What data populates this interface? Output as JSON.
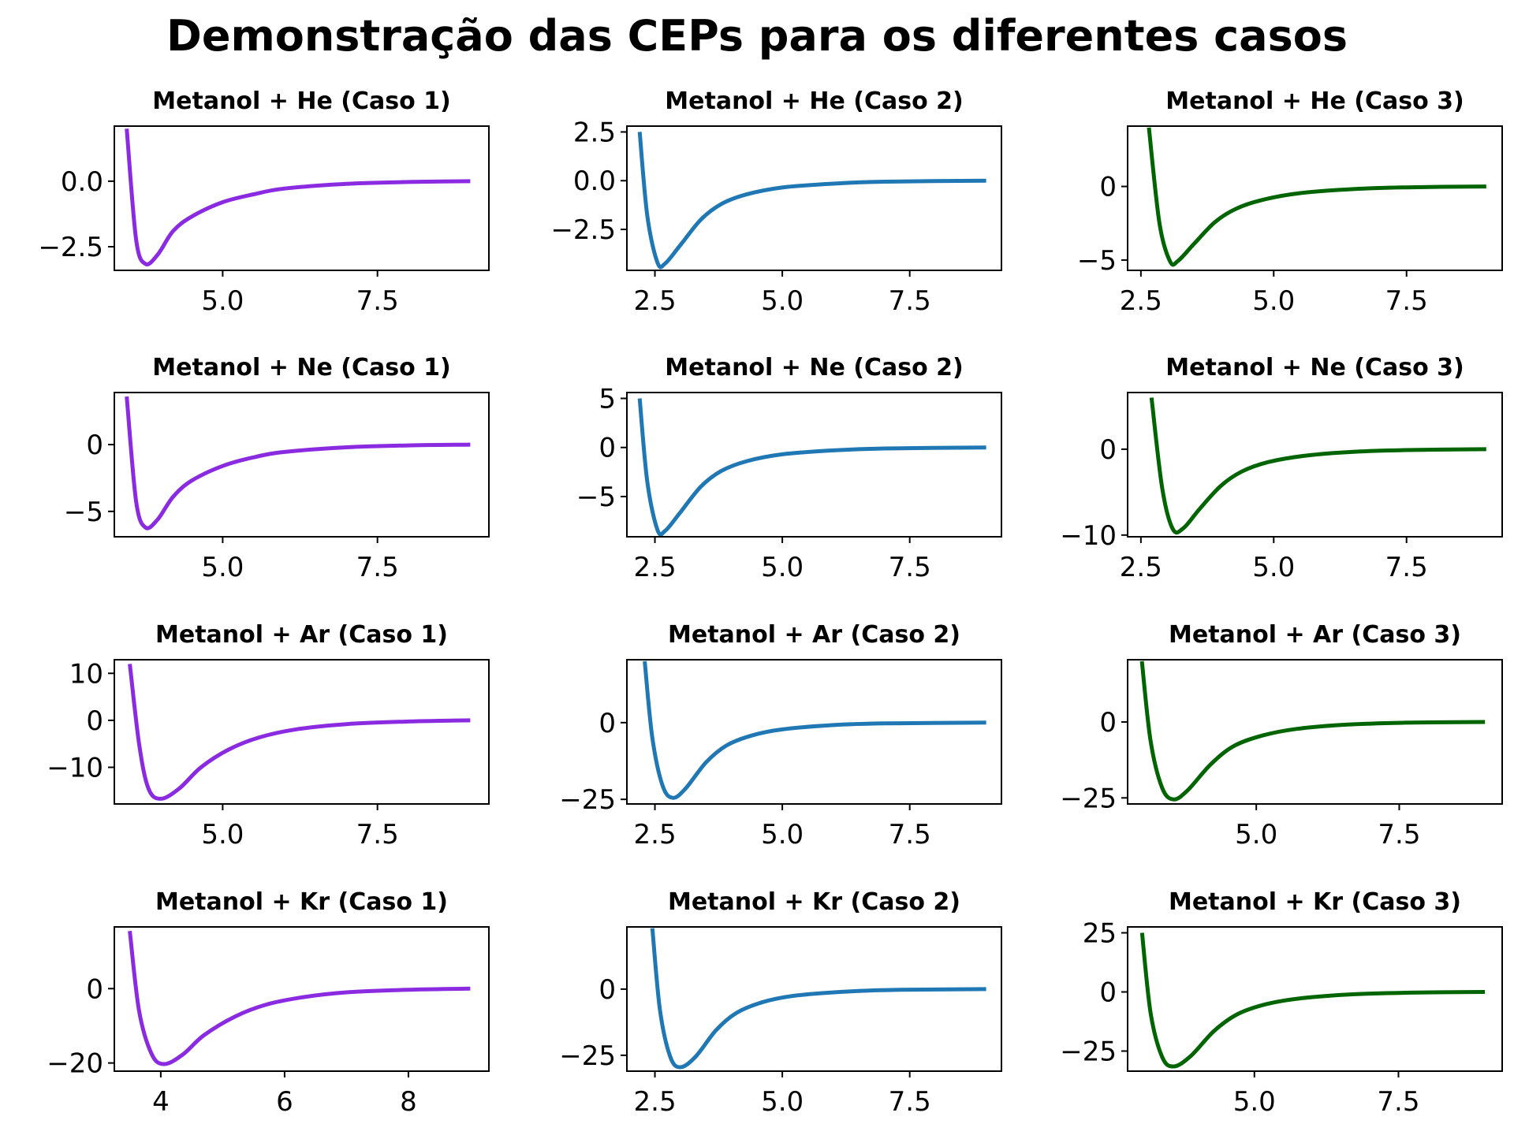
{
  "title": "Demonstração das CEPs para os diferentes casos",
  "colors": {
    "caso1": "#8a2be2",
    "caso2": "#1f77b4",
    "caso3": "#006400"
  },
  "chart_data": [
    {
      "type": "line",
      "title": "Metanol + He (Caso 1)",
      "color": "#8a2be2",
      "xlim": [
        3.25,
        9.3
      ],
      "ylim": [
        -3.4,
        2.1
      ],
      "xticks": [
        5.0,
        7.5
      ],
      "xtick_labels": [
        "5.0",
        "7.5"
      ],
      "yticks": [
        -2.5,
        0.0
      ],
      "ytick_labels": [
        "−2.5",
        "0.0"
      ],
      "x": [
        3.45,
        3.6,
        3.75,
        3.95,
        4.2,
        4.5,
        5.0,
        5.5,
        6.0,
        7.0,
        8.0,
        9.0
      ],
      "y": [
        2.0,
        -2.2,
        -3.15,
        -2.8,
        -1.9,
        -1.35,
        -0.8,
        -0.5,
        -0.28,
        -0.1,
        -0.03,
        0.0
      ]
    },
    {
      "type": "line",
      "title": "Metanol + He (Caso 2)",
      "color": "#1f77b4",
      "xlim": [
        1.95,
        9.3
      ],
      "ylim": [
        -4.6,
        2.8
      ],
      "xticks": [
        2.5,
        5.0,
        7.5
      ],
      "xtick_labels": [
        "2.5",
        "5.0",
        "7.5"
      ],
      "yticks": [
        -2.5,
        0.0,
        2.5
      ],
      "ytick_labels": [
        "−2.5",
        "0.0",
        "2.5"
      ],
      "x": [
        2.2,
        2.35,
        2.55,
        2.7,
        3.0,
        3.4,
        3.8,
        4.3,
        5.0,
        6.0,
        7.0,
        9.0
      ],
      "y": [
        2.5,
        -1.8,
        -4.2,
        -4.25,
        -3.3,
        -2.0,
        -1.2,
        -0.7,
        -0.35,
        -0.15,
        -0.05,
        0.0
      ]
    },
    {
      "type": "line",
      "title": "Metanol + He (Caso 3)",
      "color": "#006400",
      "xlim": [
        2.25,
        9.3
      ],
      "ylim": [
        -5.7,
        4.1
      ],
      "xticks": [
        2.5,
        5.0,
        7.5
      ],
      "xtick_labels": [
        "2.5",
        "5.0",
        "7.5"
      ],
      "yticks": [
        -5,
        0
      ],
      "ytick_labels": [
        "−5",
        "0"
      ],
      "x": [
        2.65,
        2.85,
        3.05,
        3.2,
        3.5,
        3.9,
        4.3,
        4.8,
        5.5,
        6.5,
        7.5,
        9.0
      ],
      "y": [
        4.0,
        -2.5,
        -5.1,
        -5.05,
        -3.9,
        -2.4,
        -1.5,
        -0.9,
        -0.45,
        -0.18,
        -0.06,
        0.0
      ]
    },
    {
      "type": "line",
      "title": "Metanol + Ne (Caso 1)",
      "color": "#8a2be2",
      "xlim": [
        3.25,
        9.3
      ],
      "ylim": [
        -6.9,
        3.9
      ],
      "xticks": [
        5.0,
        7.5
      ],
      "xtick_labels": [
        "5.0",
        "7.5"
      ],
      "yticks": [
        -5,
        0
      ],
      "ytick_labels": [
        "−5",
        "0"
      ],
      "x": [
        3.45,
        3.6,
        3.75,
        3.95,
        4.2,
        4.5,
        5.0,
        5.5,
        6.0,
        7.0,
        8.0,
        9.0
      ],
      "y": [
        3.6,
        -4.2,
        -6.2,
        -5.6,
        -3.9,
        -2.7,
        -1.6,
        -0.95,
        -0.55,
        -0.2,
        -0.06,
        0.0
      ]
    },
    {
      "type": "line",
      "title": "Metanol + Ne (Caso 2)",
      "color": "#1f77b4",
      "xlim": [
        1.95,
        9.3
      ],
      "ylim": [
        -9.1,
        5.6
      ],
      "xticks": [
        2.5,
        5.0,
        7.5
      ],
      "xtick_labels": [
        "2.5",
        "5.0",
        "7.5"
      ],
      "yticks": [
        -5,
        0,
        5
      ],
      "ytick_labels": [
        "−5",
        "0",
        "5"
      ],
      "x": [
        2.2,
        2.35,
        2.55,
        2.7,
        3.0,
        3.4,
        3.8,
        4.3,
        5.0,
        6.0,
        7.0,
        9.0
      ],
      "y": [
        5.0,
        -3.5,
        -8.4,
        -8.5,
        -6.6,
        -4.0,
        -2.4,
        -1.4,
        -0.7,
        -0.3,
        -0.1,
        0.0
      ]
    },
    {
      "type": "line",
      "title": "Metanol + Ne (Caso 3)",
      "color": "#006400",
      "xlim": [
        2.25,
        9.3
      ],
      "ylim": [
        -10.2,
        6.6
      ],
      "xticks": [
        2.5,
        5.0,
        7.5
      ],
      "xtick_labels": [
        "2.5",
        "5.0",
        "7.5"
      ],
      "yticks": [
        -10,
        0
      ],
      "ytick_labels": [
        "−10",
        "0"
      ],
      "x": [
        2.7,
        2.9,
        3.1,
        3.3,
        3.6,
        4.0,
        4.4,
        4.9,
        5.6,
        6.5,
        7.5,
        9.0
      ],
      "y": [
        6.0,
        -4.5,
        -9.3,
        -9.2,
        -7.0,
        -4.3,
        -2.6,
        -1.5,
        -0.75,
        -0.3,
        -0.1,
        0.0
      ]
    },
    {
      "type": "line",
      "title": "Metanol + Ar (Caso 1)",
      "color": "#8a2be2",
      "xlim": [
        3.25,
        9.3
      ],
      "ylim": [
        -17.8,
        12.9
      ],
      "xticks": [
        5.0,
        7.5
      ],
      "xtick_labels": [
        "5.0",
        "7.5"
      ],
      "yticks": [
        -10,
        0,
        10
      ],
      "ytick_labels": [
        "−10",
        "0",
        "10"
      ],
      "x": [
        3.5,
        3.65,
        3.8,
        4.0,
        4.3,
        4.65,
        5.1,
        5.6,
        6.2,
        7.0,
        8.0,
        9.0
      ],
      "y": [
        12.0,
        -5.0,
        -14.5,
        -16.7,
        -14.5,
        -10.0,
        -6.2,
        -3.6,
        -1.9,
        -0.8,
        -0.25,
        0.0
      ]
    },
    {
      "type": "line",
      "title": "Metanol + Ar (Caso 2)",
      "color": "#1f77b4",
      "xlim": [
        1.95,
        9.3
      ],
      "ylim": [
        -26.5,
        20.5
      ],
      "xticks": [
        2.5,
        5.0,
        7.5
      ],
      "xtick_labels": [
        "2.5",
        "5.0",
        "7.5"
      ],
      "yticks": [
        -25,
        0
      ],
      "ytick_labels": [
        "−25",
        "0"
      ],
      "x": [
        2.3,
        2.45,
        2.65,
        2.85,
        3.1,
        3.5,
        3.9,
        4.4,
        5.0,
        6.0,
        7.0,
        9.0
      ],
      "y": [
        20.0,
        -5.0,
        -20.5,
        -24.5,
        -21.5,
        -13.0,
        -7.5,
        -4.2,
        -2.2,
        -0.8,
        -0.25,
        0.0
      ]
    },
    {
      "type": "line",
      "title": "Metanol + Ar (Caso 3)",
      "color": "#006400",
      "xlim": [
        2.75,
        9.3
      ],
      "ylim": [
        -27.0,
        20.5
      ],
      "xticks": [
        5.0,
        7.5
      ],
      "xtick_labels": [
        "5.0",
        "7.5"
      ],
      "yticks": [
        -25,
        0
      ],
      "ytick_labels": [
        "−25",
        "0"
      ],
      "x": [
        3.0,
        3.15,
        3.35,
        3.55,
        3.8,
        4.2,
        4.6,
        5.1,
        5.7,
        6.6,
        7.6,
        9.0
      ],
      "y": [
        20.0,
        -6.0,
        -21.5,
        -25.5,
        -22.5,
        -14.0,
        -8.0,
        -4.5,
        -2.3,
        -0.85,
        -0.25,
        0.0
      ]
    },
    {
      "type": "line",
      "title": "Metanol + Kr (Caso 1)",
      "color": "#8a2be2",
      "xlim": [
        3.25,
        9.3
      ],
      "ylim": [
        -22.2,
        16.6
      ],
      "xticks": [
        4,
        6,
        8
      ],
      "xtick_labels": [
        "4",
        "6",
        "8"
      ],
      "yticks": [
        -20,
        0
      ],
      "ytick_labels": [
        "−20",
        "0"
      ],
      "x": [
        3.5,
        3.65,
        3.85,
        4.05,
        4.35,
        4.7,
        5.2,
        5.7,
        6.3,
        7.0,
        8.0,
        9.0
      ],
      "y": [
        15.5,
        -6.0,
        -17.5,
        -20.3,
        -17.8,
        -12.5,
        -7.5,
        -4.3,
        -2.3,
        -1.0,
        -0.3,
        0.0
      ]
    },
    {
      "type": "line",
      "title": "Metanol + Kr (Caso 2)",
      "color": "#1f77b4",
      "xlim": [
        1.95,
        9.3
      ],
      "ylim": [
        -31.0,
        23.5
      ],
      "xticks": [
        2.5,
        5.0,
        7.5
      ],
      "xtick_labels": [
        "2.5",
        "5.0",
        "7.5"
      ],
      "yticks": [
        -25,
        0
      ],
      "ytick_labels": [
        "−25",
        "0"
      ],
      "x": [
        2.45,
        2.6,
        2.8,
        3.0,
        3.3,
        3.7,
        4.1,
        4.6,
        5.2,
        6.2,
        7.2,
        9.0
      ],
      "y": [
        23.0,
        -8.0,
        -25.5,
        -29.5,
        -25.5,
        -15.5,
        -9.0,
        -5.0,
        -2.6,
        -1.0,
        -0.3,
        0.0
      ]
    },
    {
      "type": "line",
      "title": "Metanol + Kr (Caso 3)",
      "color": "#006400",
      "xlim": [
        2.8,
        9.3
      ],
      "ylim": [
        -33.5,
        27.5
      ],
      "xticks": [
        5.0,
        7.5
      ],
      "xtick_labels": [
        "5.0",
        "7.5"
      ],
      "yticks": [
        -25,
        0,
        25
      ],
      "ytick_labels": [
        "−25",
        "0",
        "25"
      ],
      "x": [
        3.05,
        3.2,
        3.4,
        3.6,
        3.9,
        4.3,
        4.7,
        5.2,
        5.8,
        6.7,
        7.7,
        9.0
      ],
      "y": [
        25.0,
        -9.0,
        -27.5,
        -31.5,
        -27.0,
        -16.5,
        -9.5,
        -5.2,
        -2.7,
        -1.0,
        -0.3,
        0.0
      ]
    }
  ]
}
